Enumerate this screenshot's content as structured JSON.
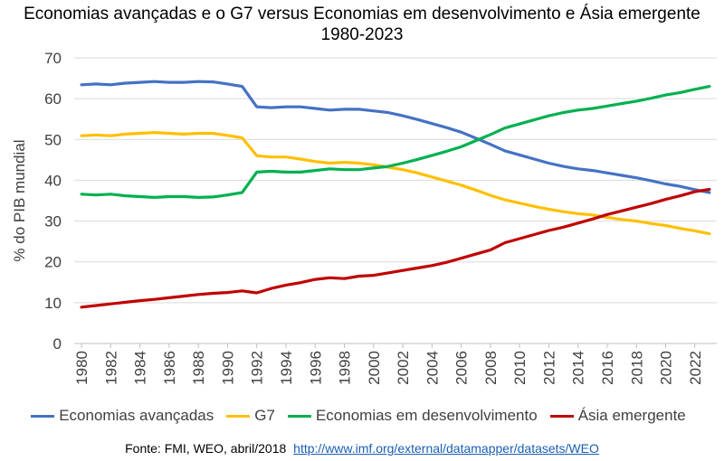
{
  "chart_data": {
    "type": "line",
    "title_line1": "Economias avançadas e o G7 versus Economias em desenvolvimento e Ásia emergente",
    "title_line2": "1980-2023",
    "ylabel": "% do PIB mundial",
    "xlabel": "",
    "ylim": [
      0,
      70
    ],
    "yticks": [
      0,
      10,
      20,
      30,
      40,
      50,
      60,
      70
    ],
    "x": [
      1980,
      1981,
      1982,
      1983,
      1984,
      1985,
      1986,
      1987,
      1988,
      1989,
      1990,
      1991,
      1992,
      1993,
      1994,
      1995,
      1996,
      1997,
      1998,
      1999,
      2000,
      2001,
      2002,
      2003,
      2004,
      2005,
      2006,
      2007,
      2008,
      2009,
      2010,
      2011,
      2012,
      2013,
      2014,
      2015,
      2016,
      2017,
      2018,
      2019,
      2020,
      2021,
      2022,
      2023
    ],
    "xticks": [
      1980,
      1982,
      1984,
      1986,
      1988,
      1990,
      1992,
      1994,
      1996,
      1998,
      2000,
      2002,
      2004,
      2006,
      2008,
      2010,
      2012,
      2014,
      2016,
      2018,
      2020,
      2022
    ],
    "grid": true,
    "legend_position": "bottom",
    "series": [
      {
        "name": "Economias avançadas",
        "color": "#4472C4",
        "values": [
          63.4,
          63.6,
          63.4,
          63.8,
          64.0,
          64.2,
          64.0,
          64.0,
          64.2,
          64.1,
          63.6,
          63.0,
          58.0,
          57.8,
          58.0,
          58.0,
          57.6,
          57.2,
          57.4,
          57.4,
          57.0,
          56.6,
          55.8,
          54.9,
          53.9,
          52.9,
          51.8,
          50.3,
          48.8,
          47.2,
          46.2,
          45.2,
          44.2,
          43.4,
          42.8,
          42.4,
          41.8,
          41.2,
          40.6,
          39.9,
          39.1,
          38.5,
          37.7,
          37.0
        ]
      },
      {
        "name": "G7",
        "color": "#FFC000",
        "values": [
          50.9,
          51.1,
          50.9,
          51.3,
          51.5,
          51.7,
          51.5,
          51.3,
          51.5,
          51.5,
          51.0,
          50.4,
          46.0,
          45.7,
          45.7,
          45.2,
          44.6,
          44.2,
          44.4,
          44.2,
          43.8,
          43.2,
          42.6,
          41.8,
          40.8,
          39.8,
          38.8,
          37.6,
          36.3,
          35.2,
          34.4,
          33.6,
          32.9,
          32.3,
          31.8,
          31.5,
          30.9,
          30.4,
          30.0,
          29.4,
          28.9,
          28.2,
          27.6,
          26.9
        ]
      },
      {
        "name": "Economias em desenvolvimento",
        "color": "#00B050",
        "values": [
          36.6,
          36.4,
          36.6,
          36.2,
          36.0,
          35.8,
          36.0,
          36.0,
          35.8,
          35.9,
          36.4,
          37.0,
          42.0,
          42.2,
          42.0,
          42.0,
          42.4,
          42.8,
          42.6,
          42.6,
          43.0,
          43.4,
          44.2,
          45.1,
          46.1,
          47.1,
          48.2,
          49.7,
          51.2,
          52.8,
          53.8,
          54.8,
          55.8,
          56.6,
          57.2,
          57.6,
          58.2,
          58.8,
          59.4,
          60.1,
          60.9,
          61.5,
          62.3,
          63.0
        ]
      },
      {
        "name": "Ásia emergente",
        "color": "#C00000",
        "values": [
          8.9,
          9.3,
          9.7,
          10.1,
          10.5,
          10.8,
          11.2,
          11.6,
          12.0,
          12.3,
          12.5,
          12.9,
          12.4,
          13.5,
          14.3,
          14.9,
          15.7,
          16.1,
          15.9,
          16.5,
          16.7,
          17.3,
          17.9,
          18.5,
          19.1,
          19.9,
          20.9,
          21.9,
          22.9,
          24.7,
          25.7,
          26.7,
          27.7,
          28.5,
          29.5,
          30.5,
          31.6,
          32.5,
          33.4,
          34.3,
          35.3,
          36.2,
          37.2,
          37.8
        ]
      }
    ]
  },
  "source": {
    "prefix": "Fonte: FMI, WEO, abril/2018",
    "link": "http://www.imf.org/external/datamapper/datasets/WEO"
  }
}
